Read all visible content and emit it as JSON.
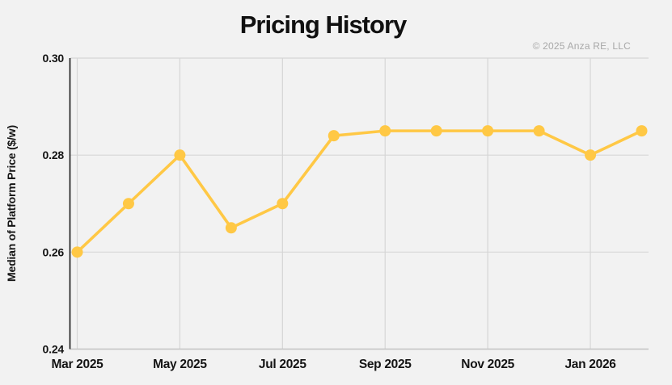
{
  "title": "Pricing History",
  "copyright": "© 2025 Anza RE, LLC",
  "colors": {
    "background": "#f2f2f2",
    "line": "#ffc845",
    "grid": "#d6d6d6",
    "x_axis_line": "#c3c3c3",
    "y_axis_line": "#161616",
    "text": "#141414",
    "title_text": "#101010",
    "copyright_text": "#a8a8a8"
  },
  "chart_data": {
    "type": "line",
    "title": "Pricing History",
    "xlabel": "",
    "ylabel": "Median of Platform Price ($/w)",
    "x": [
      "Mar 2025",
      "Apr 2025",
      "May 2025",
      "Jun 2025",
      "Jul 2025",
      "Aug 2025",
      "Sep 2025",
      "Oct 2025",
      "Nov 2025",
      "Dec 2025",
      "Jan 2026",
      "Feb 2026"
    ],
    "values": [
      0.26,
      0.27,
      0.28,
      0.265,
      0.27,
      0.284,
      0.285,
      0.285,
      0.285,
      0.285,
      0.28,
      0.285
    ],
    "ylim": [
      0.24,
      0.3
    ],
    "yticks": [
      0.24,
      0.26,
      0.28,
      0.3
    ],
    "ytick_labels": [
      "0.24",
      "0.26",
      "0.28",
      "0.30"
    ],
    "xtick_labels": [
      "Mar 2025",
      "May 2025",
      "Jul 2025",
      "Sep 2025",
      "Nov 2025",
      "Jan 2026"
    ],
    "xtick_indices": [
      0,
      2,
      4,
      6,
      8,
      10
    ],
    "grid": true,
    "legend": false,
    "marker": "circle"
  }
}
